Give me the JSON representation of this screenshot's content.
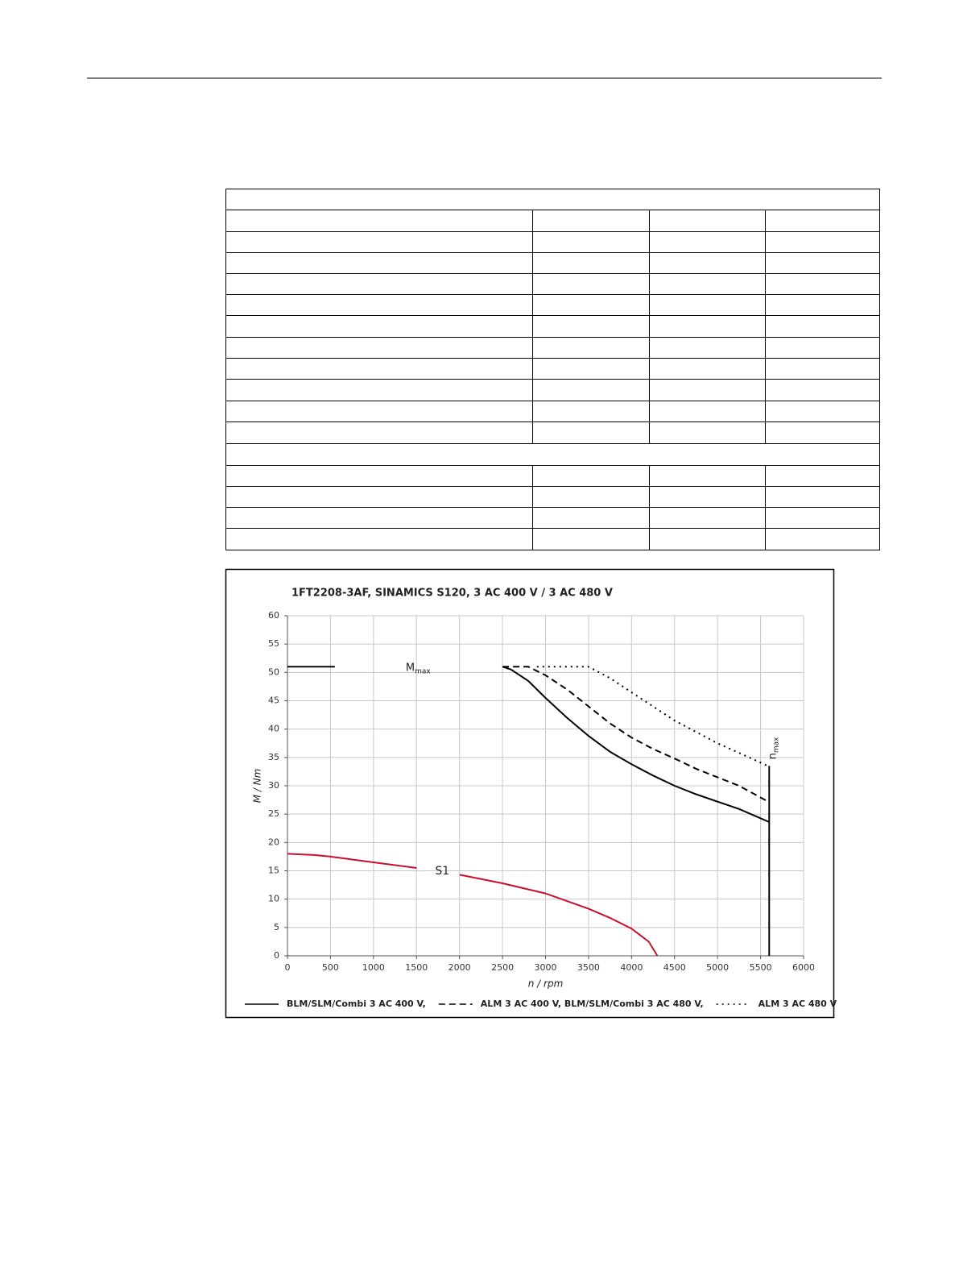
{
  "chart_data": {
    "type": "line",
    "title": "1FT2208-3AF,  SINAMICS S120,  3 AC 400 V / 3 AC 480 V",
    "x_label": "n / rpm",
    "y_label": "M / Nm",
    "xlim": [
      0,
      6000
    ],
    "xticks": [
      0,
      500,
      1000,
      1500,
      2000,
      2500,
      3000,
      3500,
      4000,
      4500,
      5000,
      5500,
      6000
    ],
    "ylim": [
      0,
      60
    ],
    "yticks": [
      0,
      5,
      10,
      15,
      20,
      25,
      30,
      35,
      40,
      45,
      50,
      55,
      60
    ],
    "grid": true,
    "series": [
      {
        "name": "BLM/SLM/Combi 3 AC 400 V,",
        "color": "#000000",
        "dash": "solid",
        "x": [
          0,
          550,
          900,
          2500,
          2600,
          2800,
          3000,
          3250,
          3500,
          3750,
          4000,
          4250,
          4500,
          4750,
          5000,
          5250,
          5600
        ],
        "values": [
          51,
          51,
          null,
          51,
          50.5,
          48.5,
          45.5,
          42,
          38.8,
          36,
          33.8,
          31.8,
          30,
          28.5,
          27.2,
          25.9,
          23.6
        ]
      },
      {
        "name": "ALM 3 AC 400 V, BLM/SLM/Combi 3 AC 480 V,",
        "color": "#000000",
        "dash": "dashed",
        "x": [
          2500,
          2800,
          3000,
          3250,
          3500,
          3750,
          4000,
          4250,
          4500,
          4750,
          5000,
          5250,
          5600
        ],
        "values": [
          51,
          51,
          49.5,
          47,
          44,
          41,
          38.5,
          36.5,
          34.8,
          33,
          31.5,
          30,
          27.1
        ]
      },
      {
        "name": "ALM 3 AC 480 V",
        "color": "#000000",
        "dash": "dotted",
        "x": [
          2900,
          3500,
          3750,
          4000,
          4250,
          4500,
          4750,
          5000,
          5250,
          5600
        ],
        "values": [
          51,
          51,
          49,
          46.5,
          44,
          41.5,
          39.5,
          37.5,
          35.8,
          33.4
        ]
      }
    ],
    "s1": {
      "name": "S1",
      "color": "#c8102e",
      "x": [
        0,
        300,
        500,
        1000,
        1500,
        1800,
        2000,
        2500,
        3000,
        3500,
        3750,
        4000,
        4200,
        4300
      ],
      "values": [
        18,
        17.8,
        17.5,
        16.5,
        15.5,
        null,
        14.3,
        12.8,
        11,
        8.3,
        6.7,
        4.8,
        2.5,
        0
      ]
    },
    "mmax_label": {
      "text": "M",
      "sub": "max"
    },
    "nmax": {
      "label": {
        "text": "n",
        "sub": "max"
      },
      "x": 5600,
      "values": [
        0,
        33.5
      ]
    }
  }
}
